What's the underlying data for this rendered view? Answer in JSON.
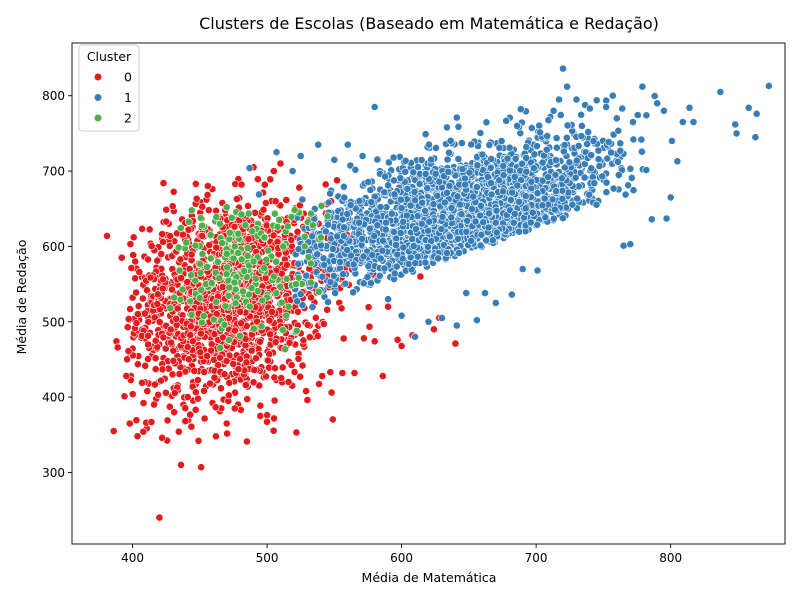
{
  "chart_data": {
    "type": "scatter",
    "title": "Clusters de Escolas (Baseado em Matemática e Redação)",
    "xlabel": "Média de Matemática",
    "ylabel": "Média de Redação",
    "xlim": [
      355,
      885
    ],
    "ylim": [
      205,
      870
    ],
    "xticks": [
      400,
      500,
      600,
      700,
      800
    ],
    "yticks": [
      300,
      400,
      500,
      600,
      700,
      800
    ],
    "grid": false,
    "legend": {
      "title": "Cluster",
      "placement": "top-left"
    },
    "series": [
      {
        "name": "0",
        "color": "#e41a1c",
        "distribution": {
          "center": [
            470,
            530
          ],
          "spread": [
            38,
            65
          ],
          "count": 1600
        },
        "points": [
          [
            381,
            614
          ],
          [
            386,
            355
          ],
          [
            388,
            474
          ],
          [
            389,
            466
          ],
          [
            392,
            585
          ],
          [
            394,
            401
          ],
          [
            397,
            461
          ],
          [
            398,
            365
          ],
          [
            402,
            580
          ],
          [
            404,
            510
          ],
          [
            405,
            566
          ],
          [
            407,
            419
          ],
          [
            408,
            354
          ],
          [
            411,
            408
          ],
          [
            414,
            367
          ],
          [
            416,
            390
          ],
          [
            419,
            403
          ],
          [
            420,
            240
          ],
          [
            422,
            346
          ],
          [
            423,
            684
          ],
          [
            425,
            633
          ],
          [
            426,
            369
          ],
          [
            431,
            380
          ],
          [
            436,
            310
          ],
          [
            441,
            400
          ],
          [
            447,
            683
          ],
          [
            449,
            342
          ],
          [
            451,
            307
          ],
          [
            456,
            680
          ],
          [
            462,
            348
          ],
          [
            470,
            365
          ],
          [
            476,
            385
          ],
          [
            481,
            682
          ],
          [
            485,
            341
          ],
          [
            490,
            705
          ],
          [
            495,
            375
          ],
          [
            500,
            376
          ],
          [
            505,
            700
          ],
          [
            510,
            710
          ],
          [
            516,
            420
          ],
          [
            529,
            408
          ],
          [
            530,
            396
          ],
          [
            535,
            618
          ],
          [
            541,
            428
          ],
          [
            547,
            433
          ],
          [
            548,
            406
          ],
          [
            556,
            432
          ],
          [
            565,
            432
          ],
          [
            572,
            478
          ],
          [
            580,
            474
          ],
          [
            586,
            428
          ],
          [
            590,
            520
          ],
          [
            597,
            476
          ],
          [
            600,
            468
          ],
          [
            608,
            482
          ],
          [
            614,
            560
          ],
          [
            624,
            490
          ],
          [
            628,
            505
          ],
          [
            640,
            471
          ]
        ]
      },
      {
        "name": "1",
        "color": "#377eb8",
        "distribution": {
          "center": [
            640,
            645
          ],
          "spread": [
            52,
            52
          ],
          "count": 2600
        },
        "points": [
          [
            487,
            704
          ],
          [
            494,
            669
          ],
          [
            507,
            725
          ],
          [
            519,
            700
          ],
          [
            525,
            720
          ],
          [
            538,
            735
          ],
          [
            550,
            715
          ],
          [
            560,
            735
          ],
          [
            571,
            720
          ],
          [
            580,
            785
          ],
          [
            590,
            530
          ],
          [
            600,
            508
          ],
          [
            610,
            480
          ],
          [
            620,
            500
          ],
          [
            630,
            505
          ],
          [
            641,
            495
          ],
          [
            648,
            538
          ],
          [
            656,
            502
          ],
          [
            662,
            538
          ],
          [
            670,
            525
          ],
          [
            682,
            536
          ],
          [
            690,
            570
          ],
          [
            701,
            568
          ],
          [
            713,
            780
          ],
          [
            717,
            795
          ],
          [
            720,
            836
          ],
          [
            723,
            812
          ],
          [
            730,
            795
          ],
          [
            734,
            760
          ],
          [
            740,
            783
          ],
          [
            745,
            794
          ],
          [
            752,
            785
          ],
          [
            757,
            800
          ],
          [
            760,
            770
          ],
          [
            764,
            783
          ],
          [
            765,
            601
          ],
          [
            770,
            603
          ],
          [
            772,
            765
          ],
          [
            779,
            812
          ],
          [
            782,
            774
          ],
          [
            786,
            636
          ],
          [
            790,
            790
          ],
          [
            795,
            780
          ],
          [
            797,
            637
          ],
          [
            800,
            665
          ],
          [
            801,
            740
          ],
          [
            805,
            713
          ],
          [
            809,
            765
          ],
          [
            814,
            784
          ],
          [
            817,
            765
          ],
          [
            837,
            805
          ],
          [
            848,
            762
          ],
          [
            849,
            750
          ],
          [
            858,
            784
          ],
          [
            863,
            745
          ],
          [
            864,
            776
          ],
          [
            873,
            813
          ]
        ]
      },
      {
        "name": "2",
        "color": "#4daf4a",
        "distribution": {
          "center": [
            480,
            570
          ],
          "spread": [
            28,
            48
          ],
          "count": 170
        },
        "points": [
          [
            428,
            518
          ],
          [
            431,
            532
          ],
          [
            435,
            568
          ],
          [
            440,
            605
          ],
          [
            444,
            648
          ],
          [
            452,
            590
          ],
          [
            458,
            615
          ],
          [
            465,
            630
          ],
          [
            470,
            590
          ],
          [
            476,
            600
          ],
          [
            484,
            628
          ],
          [
            490,
            580
          ],
          [
            498,
            612
          ],
          [
            505,
            560
          ],
          [
            512,
            600
          ],
          [
            516,
            520
          ],
          [
            522,
            488
          ],
          [
            528,
            600
          ],
          [
            534,
            628
          ],
          [
            540,
            612
          ],
          [
            545,
            640
          ]
        ]
      }
    ]
  }
}
